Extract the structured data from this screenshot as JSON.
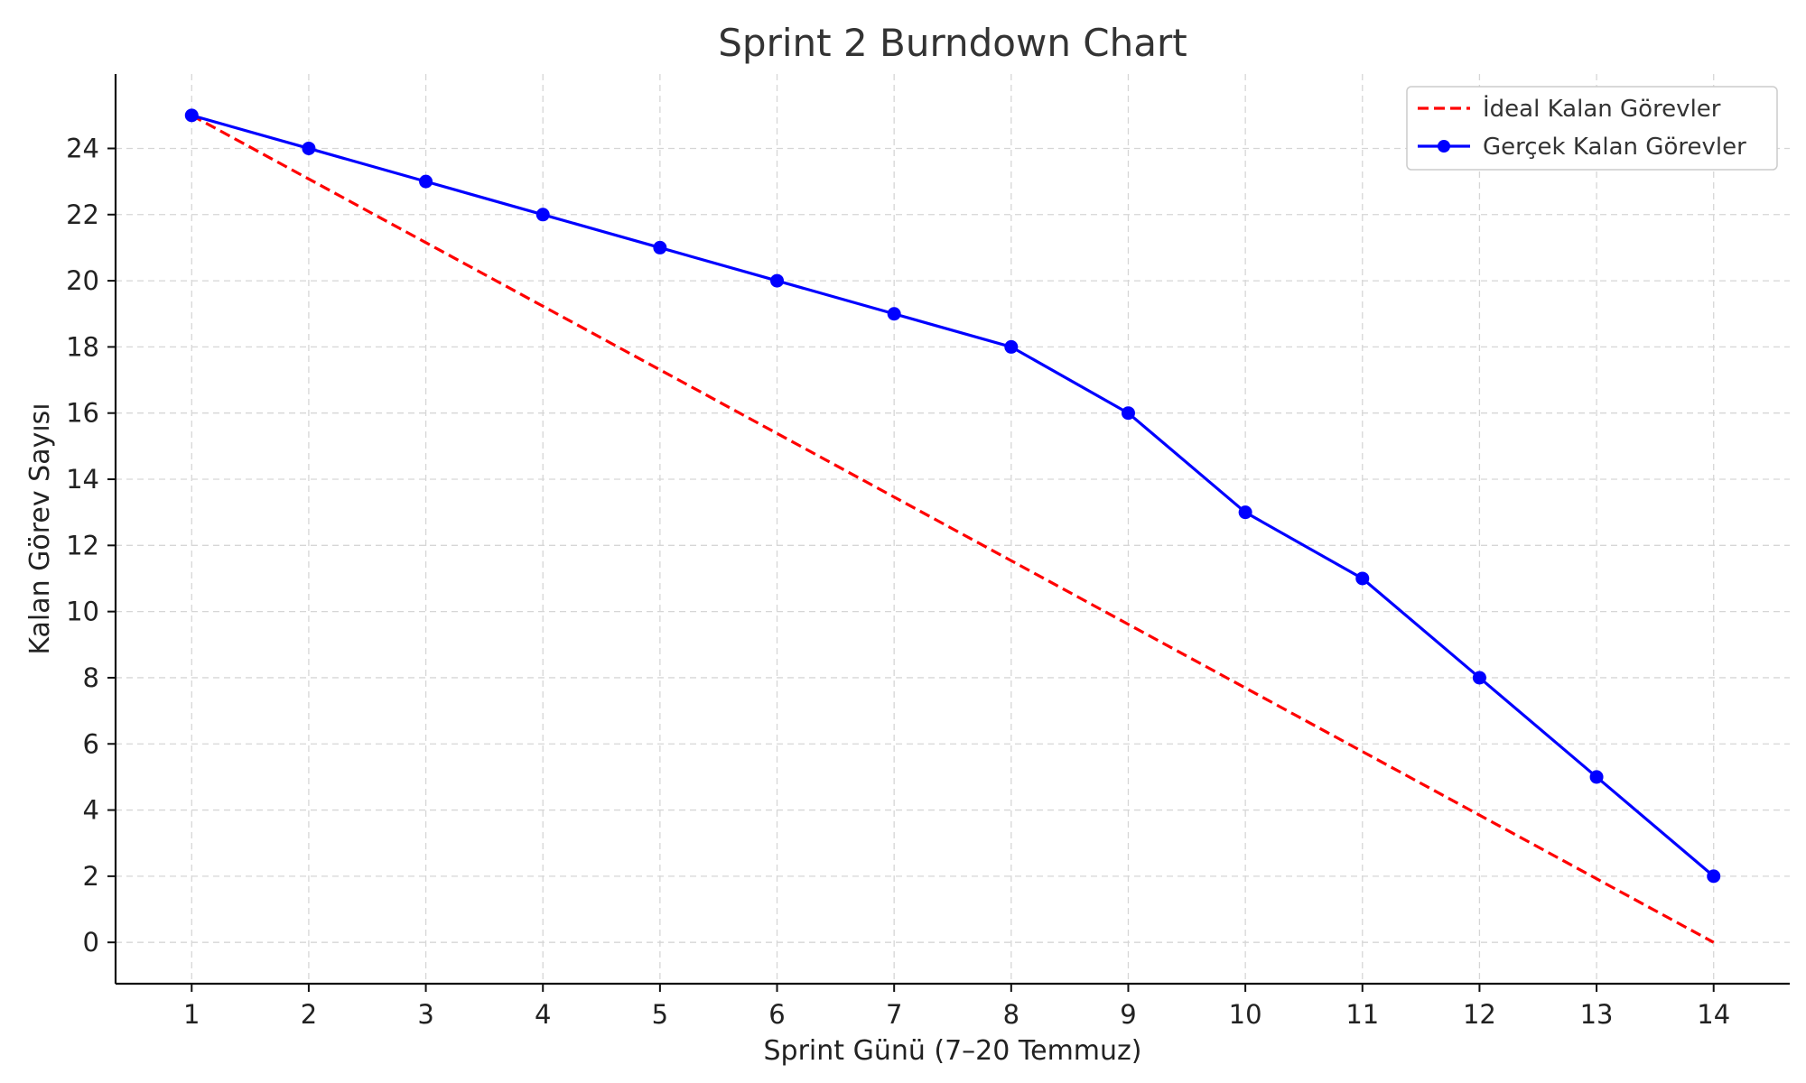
{
  "chart_data": {
    "type": "line",
    "title": "Sprint 2 Burndown Chart",
    "xlabel": "Sprint Günü (7–20 Temmuz)",
    "ylabel": "Kalan Görev Sayısı",
    "x": [
      1,
      2,
      3,
      4,
      5,
      6,
      7,
      8,
      9,
      10,
      11,
      12,
      13,
      14
    ],
    "xlim": [
      0.35,
      14.65
    ],
    "ylim": [
      -1.25,
      26.25
    ],
    "xticks": [
      1,
      2,
      3,
      4,
      5,
      6,
      7,
      8,
      9,
      10,
      11,
      12,
      13,
      14
    ],
    "yticks": [
      0,
      2,
      4,
      6,
      8,
      10,
      12,
      14,
      16,
      18,
      20,
      22,
      24
    ],
    "grid": true,
    "legend_position": "top-right",
    "series": [
      {
        "name": "İdeal Kalan Görevler",
        "style": "dashed",
        "markers": false,
        "color": "#ff0000",
        "values": [
          25,
          23.077,
          21.154,
          19.231,
          17.308,
          15.385,
          13.462,
          11.538,
          9.615,
          7.692,
          5.769,
          3.846,
          1.923,
          0
        ]
      },
      {
        "name": "Gerçek Kalan Görevler",
        "style": "solid",
        "markers": true,
        "color": "#0000ff",
        "values": [
          25,
          24,
          23,
          22,
          21,
          20,
          19,
          18,
          16,
          13,
          11,
          8,
          5,
          2
        ]
      }
    ]
  }
}
